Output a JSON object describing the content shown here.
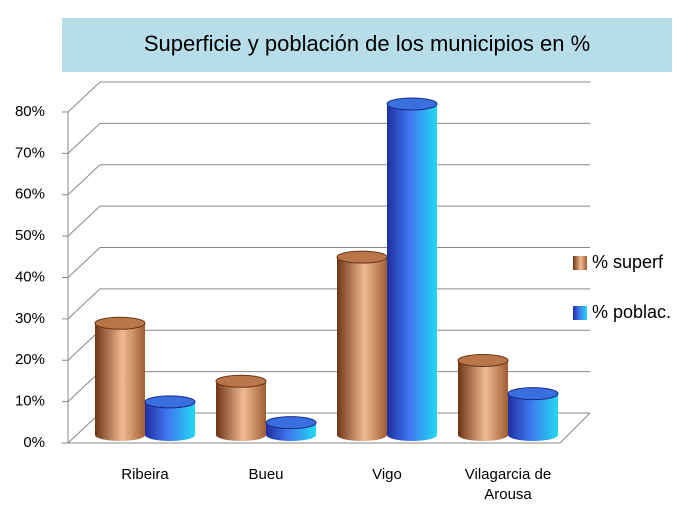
{
  "chart_data": {
    "type": "bar3d",
    "title": "Superficie y población de los municipios en %",
    "categories": [
      "Ribeira",
      "Bueu",
      "Vigo",
      "Vilagarcia de Arousa"
    ],
    "series": [
      {
        "name": "% superf",
        "color": "#b8764a",
        "values": [
          27,
          13,
          43,
          18
        ]
      },
      {
        "name": "% poblac.",
        "color": "#3a6fe0",
        "values": [
          8,
          3,
          80,
          10
        ]
      }
    ],
    "ylim": [
      0,
      80
    ],
    "yticks": [
      {
        "value": 0,
        "label": "0%"
      },
      {
        "value": 10,
        "label": "10%"
      },
      {
        "value": 20,
        "label": "20%"
      },
      {
        "value": 30,
        "label": "30%"
      },
      {
        "value": 40,
        "label": "40%"
      },
      {
        "value": 50,
        "label": "50%"
      },
      {
        "value": 60,
        "label": "60%"
      },
      {
        "value": 70,
        "label": "70%"
      },
      {
        "value": 80,
        "label": "80%"
      }
    ],
    "grid": true,
    "legend": "right"
  }
}
